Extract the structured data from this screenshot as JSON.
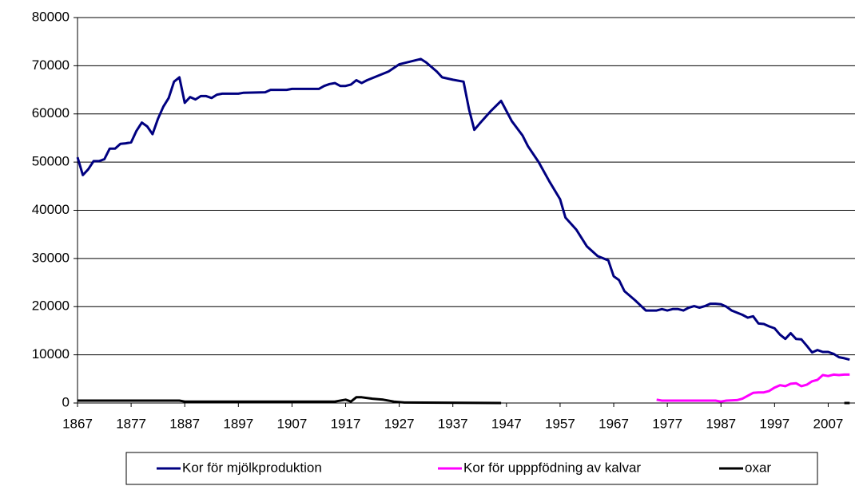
{
  "chart_data": {
    "type": "line",
    "xlim": [
      1867,
      2012
    ],
    "xticks": [
      1867,
      1877,
      1887,
      1897,
      1907,
      1917,
      1927,
      1937,
      1947,
      1957,
      1967,
      1977,
      1987,
      1997,
      2007
    ],
    "ylim": [
      0,
      80000
    ],
    "yticks": [
      0,
      10000,
      20000,
      30000,
      40000,
      50000,
      60000,
      70000,
      80000
    ],
    "grid": true,
    "legend": "bottom",
    "series": [
      {
        "name": "Kor för mjölkproduktion",
        "color": "#000080",
        "x": [
          1867,
          1868,
          1869,
          1870,
          1871,
          1872,
          1873,
          1874,
          1875,
          1876,
          1877,
          1878,
          1879,
          1880,
          1881,
          1882,
          1883,
          1884,
          1885,
          1886,
          1887,
          1888,
          1889,
          1890,
          1891,
          1892,
          1893,
          1894,
          1897,
          1898,
          1902,
          1903,
          1906,
          1907,
          1912,
          1913,
          1914,
          1915,
          1916,
          1917,
          1918,
          1919,
          1920,
          1921,
          1925,
          1927,
          1931,
          1932,
          1934,
          1935,
          1937,
          1939,
          1940,
          1941,
          1942,
          1944,
          1946,
          1948,
          1950,
          1951,
          1953,
          1955,
          1957,
          1958,
          1960,
          1962,
          1964,
          1966,
          1967,
          1968,
          1969,
          1971,
          1973,
          1975,
          1976,
          1977,
          1978,
          1979,
          1980,
          1981,
          1982,
          1983,
          1984,
          1985,
          1986,
          1987,
          1988,
          1989,
          1991,
          1992,
          1993,
          1994,
          1995,
          1996,
          1997,
          1998,
          1999,
          2000,
          2001,
          2002,
          2003,
          2004,
          2005,
          2006,
          2007,
          2008,
          2009,
          2010,
          2011
        ],
        "values": [
          51000,
          47300,
          48500,
          50200,
          50200,
          50600,
          52800,
          52800,
          53800,
          53900,
          54100,
          56500,
          58200,
          57400,
          55800,
          59000,
          61500,
          63300,
          66700,
          67600,
          62300,
          63500,
          63000,
          63700,
          63700,
          63300,
          64000,
          64200,
          64200,
          64400,
          64500,
          65000,
          65000,
          65200,
          65200,
          65800,
          66200,
          66400,
          65800,
          65800,
          66100,
          67000,
          66400,
          67000,
          68800,
          70300,
          71400,
          70700,
          68800,
          67600,
          67100,
          66700,
          61000,
          56700,
          58000,
          60500,
          62700,
          58500,
          55500,
          53300,
          50000,
          46000,
          42300,
          38500,
          36000,
          32500,
          30500,
          29600,
          26300,
          25500,
          23200,
          21300,
          19200,
          19200,
          19500,
          19200,
          19500,
          19500,
          19200,
          19800,
          20100,
          19800,
          20100,
          20600,
          20600,
          20500,
          20000,
          19200,
          18300,
          17700,
          18000,
          16500,
          16400,
          15900,
          15500,
          14200,
          13300,
          14500,
          13300,
          13200,
          11900,
          10500,
          11000,
          10600,
          10600,
          10200,
          9500,
          9300,
          9000
        ]
      },
      {
        "name": "Kor för upppfödning av kalvar",
        "color": "#ff00ff",
        "x": [
          1975,
          1976,
          1977,
          1980,
          1983,
          1986,
          1987,
          1988,
          1990,
          1991,
          1992,
          1993,
          1994,
          1995,
          1996,
          1997,
          1998,
          1999,
          2000,
          2001,
          2002,
          2003,
          2004,
          2005,
          2006,
          2007,
          2008,
          2009,
          2010,
          2011
        ],
        "values": [
          700,
          500,
          500,
          500,
          500,
          500,
          300,
          500,
          600,
          900,
          1500,
          2100,
          2200,
          2200,
          2500,
          3200,
          3700,
          3500,
          4000,
          4100,
          3500,
          3800,
          4500,
          4800,
          5800,
          5600,
          5900,
          5800,
          5900,
          5900
        ]
      },
      {
        "name": "oxar",
        "color": "#000000",
        "x": [
          1867,
          1886,
          1887,
          1915,
          1917,
          1918,
          1919,
          1920,
          1922,
          1924,
          1926,
          1928,
          1946,
          1980,
          2010,
          2011
        ],
        "values": [
          500,
          500,
          300,
          300,
          700,
          300,
          1200,
          1200,
          900,
          700,
          300,
          100,
          0,
          null,
          0,
          0
        ]
      }
    ]
  }
}
